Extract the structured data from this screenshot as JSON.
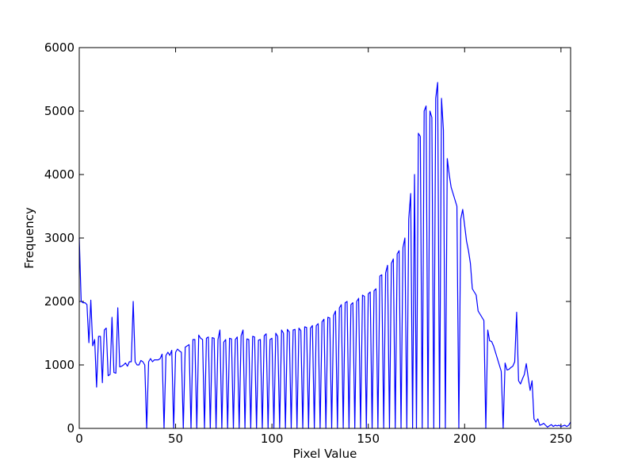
{
  "chart_data": {
    "type": "line",
    "xlabel": "Pixel Value",
    "ylabel": "Frequency",
    "x": [
      0,
      1,
      2,
      3,
      4,
      5,
      6,
      7,
      8,
      9,
      10,
      11,
      12,
      13,
      14,
      15,
      16,
      17,
      18,
      19,
      20,
      21,
      22,
      23,
      24,
      25,
      26,
      27,
      28,
      29,
      30,
      31,
      32,
      33,
      34,
      35,
      36,
      37,
      38,
      39,
      40,
      41,
      42,
      43,
      44,
      45,
      46,
      47,
      48,
      49,
      50,
      51,
      52,
      53,
      54,
      55,
      56,
      57,
      58,
      59,
      60,
      61,
      62,
      63,
      64,
      65,
      66,
      67,
      68,
      69,
      70,
      71,
      72,
      73,
      74,
      75,
      76,
      77,
      78,
      79,
      80,
      81,
      82,
      83,
      84,
      85,
      86,
      87,
      88,
      89,
      90,
      91,
      92,
      93,
      94,
      95,
      96,
      97,
      98,
      99,
      100,
      101,
      102,
      103,
      104,
      105,
      106,
      107,
      108,
      109,
      110,
      111,
      112,
      113,
      114,
      115,
      116,
      117,
      118,
      119,
      120,
      121,
      122,
      123,
      124,
      125,
      126,
      127,
      128,
      129,
      130,
      131,
      132,
      133,
      134,
      135,
      136,
      137,
      138,
      139,
      140,
      141,
      142,
      143,
      144,
      145,
      146,
      147,
      148,
      149,
      150,
      151,
      152,
      153,
      154,
      155,
      156,
      157,
      158,
      159,
      160,
      161,
      162,
      163,
      164,
      165,
      166,
      167,
      168,
      169,
      170,
      171,
      172,
      173,
      174,
      175,
      176,
      177,
      178,
      179,
      180,
      181,
      182,
      183,
      184,
      185,
      186,
      187,
      188,
      189,
      190,
      191,
      192,
      193,
      194,
      195,
      196,
      197,
      198,
      199,
      200,
      201,
      202,
      203,
      204,
      205,
      206,
      207,
      208,
      209,
      210,
      211,
      212,
      213,
      214,
      215,
      216,
      217,
      218,
      219,
      220,
      221,
      222,
      223,
      224,
      225,
      226,
      227,
      228,
      229,
      230,
      231,
      232,
      233,
      234,
      235,
      236,
      237,
      238,
      239,
      240,
      241,
      242,
      243,
      244,
      245,
      246,
      247,
      248,
      249,
      250,
      251,
      252,
      253,
      254,
      255
    ],
    "series": [
      {
        "color": "#0000ff",
        "values": [
          3000,
          2000,
          1980,
          1980,
          1950,
          1350,
          2020,
          1300,
          1400,
          650,
          1450,
          1450,
          720,
          1550,
          1580,
          830,
          850,
          1750,
          880,
          870,
          1900,
          970,
          980,
          1000,
          1030,
          980,
          1050,
          1050,
          2000,
          1050,
          1000,
          1000,
          1070,
          1050,
          1000,
          0,
          1050,
          1100,
          1050,
          1080,
          1080,
          1080,
          1100,
          1170,
          0,
          1150,
          1200,
          1150,
          1230,
          0,
          1200,
          1250,
          1220,
          1200,
          0,
          1280,
          1300,
          1320,
          0,
          1400,
          1400,
          0,
          1470,
          1420,
          1400,
          0,
          1420,
          1440,
          0,
          1430,
          1420,
          0,
          1400,
          1550,
          0,
          1360,
          1400,
          0,
          1420,
          1410,
          0,
          1400,
          1440,
          0,
          1460,
          1550,
          0,
          1410,
          1400,
          0,
          1450,
          1440,
          0,
          1390,
          1400,
          0,
          1460,
          1490,
          0,
          1400,
          1420,
          0,
          1500,
          1450,
          0,
          1550,
          1500,
          0,
          1560,
          1520,
          0,
          1550,
          1560,
          0,
          1580,
          1540,
          0,
          1600,
          1590,
          0,
          1580,
          1620,
          0,
          1620,
          1650,
          0,
          1680,
          1720,
          0,
          1750,
          1740,
          0,
          1780,
          1850,
          0,
          1900,
          1950,
          0,
          1980,
          2000,
          0,
          1950,
          1980,
          0,
          2000,
          2050,
          0,
          2100,
          2080,
          0,
          2120,
          2150,
          0,
          2170,
          2200,
          0,
          2400,
          2420,
          0,
          2450,
          2570,
          0,
          2600,
          2670,
          0,
          2750,
          2800,
          0,
          2850,
          3000,
          0,
          3300,
          3700,
          0,
          4000,
          0,
          4650,
          4600,
          0,
          5000,
          5080,
          0,
          5000,
          4900,
          0,
          5200,
          5450,
          0,
          5200,
          4700,
          0,
          4250,
          4000,
          3800,
          3700,
          3600,
          3500,
          0,
          3300,
          3450,
          3200,
          2950,
          2800,
          2600,
          2200,
          2150,
          2100,
          1850,
          1800,
          1750,
          1700,
          0,
          1550,
          1380,
          1370,
          1300,
          1200,
          1100,
          1000,
          900,
          0,
          1030,
          920,
          930,
          960,
          980,
          1050,
          1830,
          750,
          700,
          780,
          850,
          1020,
          800,
          600,
          750,
          150,
          100,
          150,
          50,
          60,
          80,
          50,
          20,
          40,
          60,
          30,
          50,
          40,
          50,
          30,
          40,
          50,
          30,
          50,
          100
        ]
      }
    ],
    "xlim": [
      0,
      255
    ],
    "xticks": [
      0,
      50,
      100,
      150,
      200,
      250
    ],
    "ylim": [
      0,
      6000
    ],
    "yticks": [
      0,
      1000,
      2000,
      3000,
      4000,
      5000,
      6000
    ],
    "grid": false
  }
}
